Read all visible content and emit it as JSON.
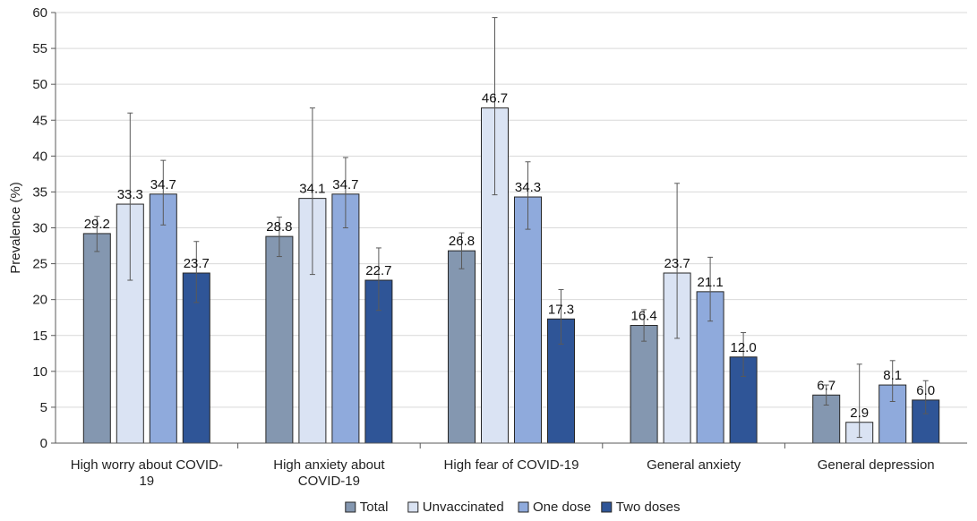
{
  "chart_data": {
    "type": "bar",
    "ylabel": "Prevalence (%)",
    "xlabel": "",
    "ylim": [
      0,
      60
    ],
    "ytick_step": 5,
    "grid": "horizontal",
    "legend_position": "bottom",
    "categories": [
      [
        "High worry about COVID-",
        "19"
      ],
      [
        "High anxiety about",
        "COVID-19"
      ],
      [
        "High fear of COVID-19"
      ],
      [
        "General anxiety"
      ],
      [
        "General depression"
      ]
    ],
    "series": [
      {
        "name": "Total",
        "color": "#8497b0",
        "values": [
          29.2,
          28.8,
          26.8,
          16.4,
          6.7
        ],
        "labels": [
          "29.2",
          "28.8",
          "26.8",
          "16.4",
          "6.7"
        ],
        "err_low": [
          26.7,
          26.0,
          24.3,
          14.2,
          5.3
        ],
        "err_high": [
          31.6,
          31.5,
          29.3,
          18.6,
          8.1
        ]
      },
      {
        "name": "Unvaccinated",
        "color": "#dae3f3",
        "values": [
          33.3,
          34.1,
          46.7,
          23.7,
          2.9
        ],
        "labels": [
          "33.3",
          "34.1",
          "46.7",
          "23.7",
          "2.9"
        ],
        "err_low": [
          22.7,
          23.5,
          34.6,
          14.6,
          0.8
        ],
        "err_high": [
          46.0,
          46.7,
          59.3,
          36.2,
          11.0
        ]
      },
      {
        "name": "One dose",
        "color": "#8faadc",
        "values": [
          34.7,
          34.7,
          34.3,
          21.1,
          8.1
        ],
        "labels": [
          "34.7",
          "34.7",
          "34.3",
          "21.1",
          "8.1"
        ],
        "err_low": [
          30.4,
          30.0,
          29.8,
          17.0,
          5.8
        ],
        "err_high": [
          39.4,
          39.8,
          39.2,
          25.9,
          11.5
        ]
      },
      {
        "name": "Two doses",
        "color": "#2f5597",
        "values": [
          23.7,
          22.7,
          17.3,
          12.0,
          6.0
        ],
        "labels": [
          "23.7",
          "22.7",
          "17.3",
          "12.0",
          "6.0"
        ],
        "err_low": [
          19.6,
          18.5,
          13.8,
          9.3,
          4.1
        ],
        "err_high": [
          28.1,
          27.2,
          21.4,
          15.4,
          8.7
        ]
      }
    ]
  }
}
